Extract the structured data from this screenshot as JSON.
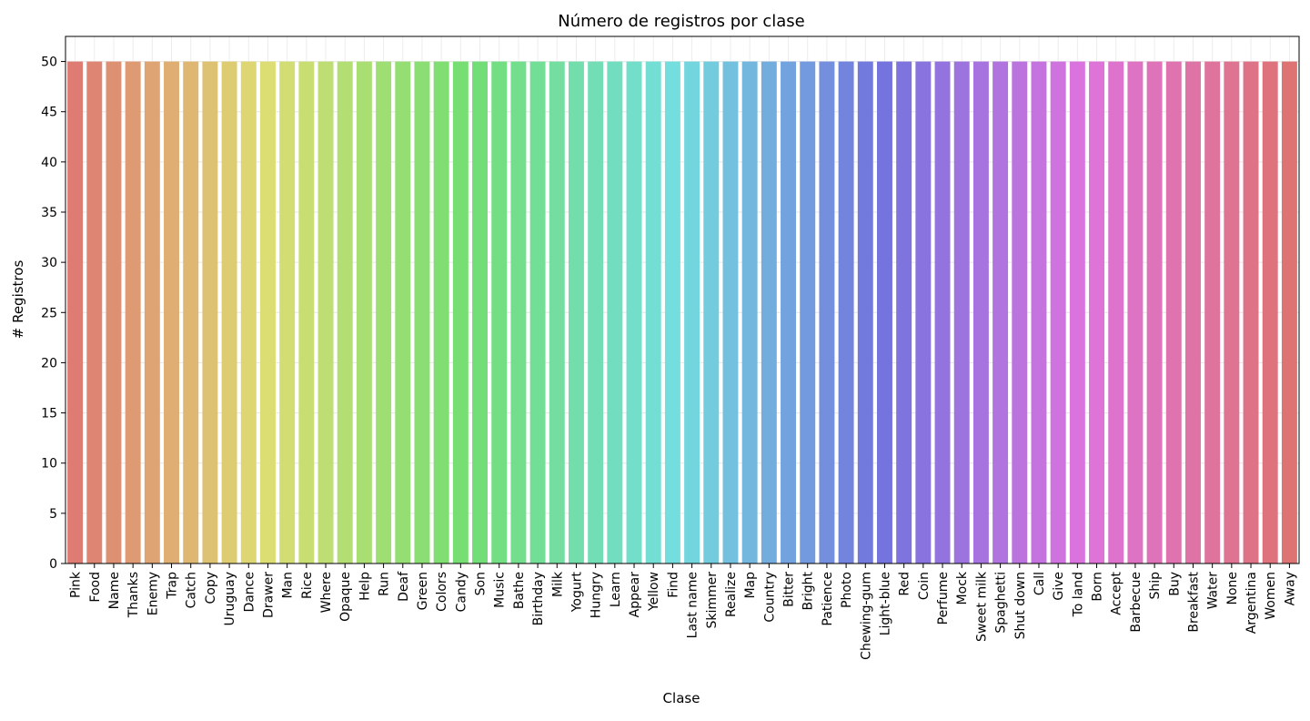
{
  "chart_data": {
    "type": "bar",
    "title": "Número de registros por clase",
    "xlabel": "Clase",
    "ylabel": "# Registros",
    "ylim": [
      0,
      52.5
    ],
    "yticks": [
      0,
      5,
      10,
      15,
      20,
      25,
      30,
      35,
      40,
      45,
      50
    ],
    "grid": true,
    "categories": [
      "Pink",
      "Food",
      "Name",
      "Thanks",
      "Enemy",
      "Trap",
      "Catch",
      "Copy",
      "Uruguay",
      "Dance",
      "Drawer",
      "Man",
      "Rice",
      "Where",
      "Opaque",
      "Help",
      "Run",
      "Deaf",
      "Green",
      "Colors",
      "Candy",
      "Son",
      "Music",
      "Bathe",
      "Birthday",
      "Milk",
      "Yogurt",
      "Hungry",
      "Learn",
      "Appear",
      "Yellow",
      "Find",
      "Last name",
      "Skimmer",
      "Realize",
      "Map",
      "Country",
      "Bitter",
      "Bright",
      "Patience",
      "Photo",
      "Chewing-gum",
      "Light-blue",
      "Red",
      "Coin",
      "Perfume",
      "Mock",
      "Sweet milk",
      "Spaghetti",
      "Shut down",
      "Call",
      "Give",
      "To land",
      "Born",
      "Accept",
      "Barbecue",
      "Ship",
      "Buy",
      "Breakfast",
      "Water",
      "None",
      "Argentina",
      "Women",
      "Away"
    ],
    "values": [
      50,
      50,
      50,
      50,
      50,
      50,
      50,
      50,
      50,
      50,
      50,
      50,
      50,
      50,
      50,
      50,
      50,
      50,
      50,
      50,
      50,
      50,
      50,
      50,
      50,
      50,
      50,
      50,
      50,
      50,
      50,
      50,
      50,
      50,
      50,
      50,
      50,
      50,
      50,
      50,
      50,
      50,
      50,
      50,
      50,
      50,
      50,
      50,
      50,
      50,
      50,
      50,
      50,
      50,
      50,
      50,
      50,
      50,
      50,
      50,
      50,
      50,
      50,
      50
    ],
    "palette": "husl"
  }
}
